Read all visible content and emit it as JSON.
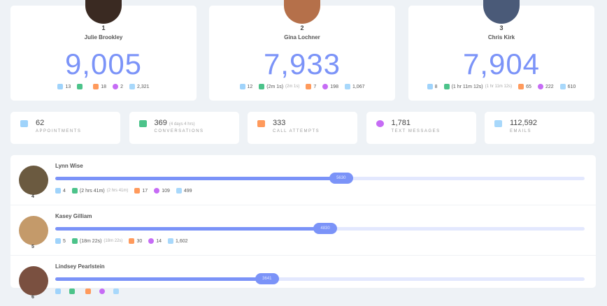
{
  "colors": {
    "accent": "#7b93f8",
    "appointments": "#9fd3fb",
    "conversations": "#4cc38a",
    "calls": "#ff9a5c",
    "texts": "#c66cf5",
    "emails": "#a8d8fb"
  },
  "top": [
    {
      "rank": "1",
      "name": "Julie Brookley",
      "score": "9,005",
      "stats": [
        "13",
        "0",
        "",
        "18",
        "2",
        "2,321"
      ],
      "avatar_color": "#3a2a22"
    },
    {
      "rank": "2",
      "name": "Gina Lochner",
      "score": "7,933",
      "stats": [
        "12",
        "6",
        "(2m 1s)",
        "7",
        "198",
        "1,067"
      ],
      "avatar_color": "#b5704a"
    },
    {
      "rank": "3",
      "name": "Chris Kirk",
      "score": "7,904",
      "stats": [
        "8",
        "24",
        "(1 hr 11m 12s)",
        "65",
        "222",
        "610"
      ],
      "avatar_color": "#4a5a78"
    }
  ],
  "summary": [
    {
      "icon": "calendar-icon",
      "value": "62",
      "sub": "",
      "label": "APPOINTMENTS"
    },
    {
      "icon": "phone-icon",
      "value": "369",
      "sub": "(4 days 4 hrs)",
      "label": "CONVERSATIONS"
    },
    {
      "icon": "phone-outgoing-icon",
      "value": "333",
      "sub": "",
      "label": "CALL ATTEMPTS"
    },
    {
      "icon": "chat-icon",
      "value": "1,781",
      "sub": "",
      "label": "TEXT MESSAGES"
    },
    {
      "icon": "email-icon",
      "value": "112,592",
      "sub": "",
      "label": "EMAILS"
    }
  ],
  "rows": [
    {
      "rank": "4",
      "name": "Lynn Wise",
      "score": "5630",
      "progress": 0.54,
      "stats": [
        "4",
        "21",
        "(2 hrs 41m)",
        "17",
        "109",
        "499"
      ],
      "avatar_color": "#6b5a40"
    },
    {
      "rank": "5",
      "name": "Kasey Gilliam",
      "score": "4830",
      "progress": 0.51,
      "stats": [
        "5",
        "4",
        "(18m 22s)",
        "30",
        "14",
        "1,602"
      ],
      "avatar_color": "#c49a6a"
    },
    {
      "rank": "6",
      "name": "Lindsey Pearlstein",
      "score": "3641",
      "progress": 0.4,
      "stats": [
        "",
        "",
        "",
        "",
        "",
        ""
      ],
      "avatar_color": "#7a5040"
    }
  ]
}
